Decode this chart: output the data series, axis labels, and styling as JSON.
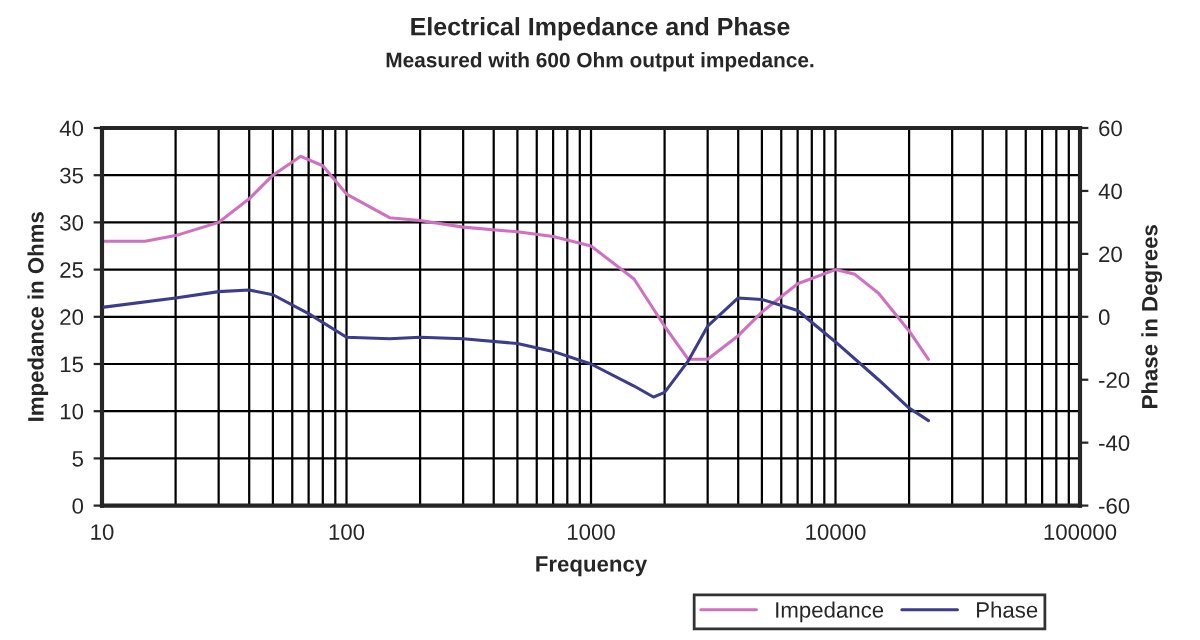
{
  "chart_data": {
    "type": "line",
    "title": "Electrical Impedance and Phase",
    "subtitle": "Measured with 600 Ohm output impedance.",
    "xlabel": "Frequency",
    "ylabel": "Impedance in Ohms",
    "y2label": "Phase in Degrees",
    "log": "x",
    "grid": true,
    "legend": "bottom right",
    "xlim": [
      10,
      100000
    ],
    "xticks": [
      10,
      100,
      1000,
      10000,
      100000
    ],
    "ylim": [
      0,
      40
    ],
    "yticks": [
      0,
      5,
      10,
      15,
      20,
      25,
      30,
      35,
      40
    ],
    "y2lim": [
      -60,
      60
    ],
    "y2ticks": [
      -60,
      -40,
      -20,
      0,
      20,
      40,
      60
    ],
    "series": [
      {
        "name": "Impedance",
        "color": "#d070c0",
        "x": [
          10,
          15,
          20,
          30,
          40,
          50,
          65,
          80,
          100,
          150,
          200,
          300,
          500,
          700,
          1000,
          1500,
          2000,
          2500,
          3000,
          4000,
          5000,
          7000,
          10000,
          12000,
          15000,
          20000,
          24000
        ],
        "values": [
          28,
          28,
          28.6,
          30,
          32.5,
          35,
          37,
          36,
          33,
          30.5,
          30.2,
          29.5,
          29,
          28.5,
          27.5,
          24,
          19,
          15.5,
          15.5,
          18,
          20.5,
          23.5,
          25,
          24.5,
          22.5,
          18.5,
          15.5
        ]
      },
      {
        "name": "Phase",
        "color": "#3c3c8c",
        "axis": "y2",
        "x": [
          10,
          20,
          30,
          40,
          50,
          70,
          100,
          150,
          200,
          300,
          500,
          700,
          1000,
          1500,
          1800,
          2000,
          2500,
          3000,
          4000,
          5000,
          7000,
          10000,
          15000,
          20000,
          24000
        ],
        "values": [
          3,
          6,
          8,
          8.5,
          7,
          1,
          -6.5,
          -7,
          -6.5,
          -7,
          -8.5,
          -11,
          -15,
          -22,
          -25.5,
          -24,
          -14,
          -3,
          6,
          5.5,
          2,
          -8,
          -20,
          -29,
          -33
        ]
      }
    ]
  }
}
